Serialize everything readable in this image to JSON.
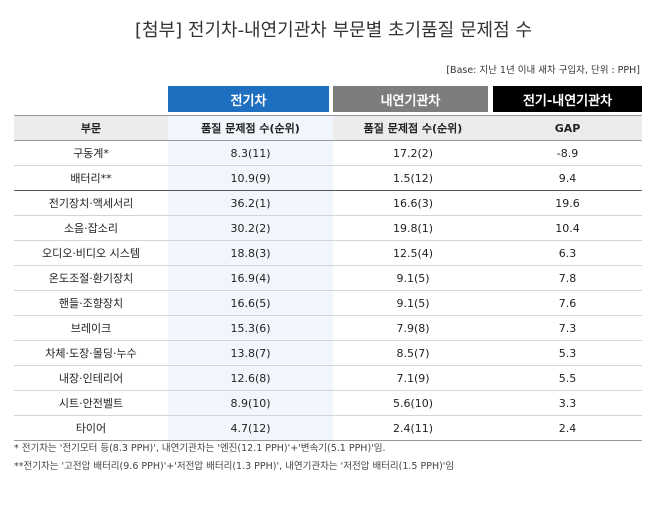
{
  "title": "[첨부] 전기차-내연기관차 부문별 초기품질 문제점 수",
  "basis": "[Base: 지난 1년 이내 새차 구입자, 단위 : PPH]",
  "group_headers": {
    "ev": "전기차",
    "ice": "내연기관차",
    "gap": "전기-내연기관차"
  },
  "columns": {
    "category": "부문",
    "ev": "품질 문제점 수(순위)",
    "ice": "품질 문제점 수(순위)",
    "gap": "GAP"
  },
  "rows": [
    {
      "category": "구동계*",
      "ev": "8.3(11)",
      "ice": "17.2(2)",
      "gap": "-8.9"
    },
    {
      "category": "배터리**",
      "ev": "10.9(9)",
      "ice": "1.5(12)",
      "gap": "9.4"
    },
    {
      "category": "전기장치·액세서리",
      "ev": "36.2(1)",
      "ice": "16.6(3)",
      "gap": "19.6"
    },
    {
      "category": "소음·잡소리",
      "ev": "30.2(2)",
      "ice": "19.8(1)",
      "gap": "10.4"
    },
    {
      "category": "오디오·비디오 시스템",
      "ev": "18.8(3)",
      "ice": "12.5(4)",
      "gap": "6.3"
    },
    {
      "category": "온도조절·환기장치",
      "ev": "16.9(4)",
      "ice": "9.1(5)",
      "gap": "7.8"
    },
    {
      "category": "핸들·조향장치",
      "ev": "16.6(5)",
      "ice": "9.1(5)",
      "gap": "7.6"
    },
    {
      "category": "브레이크",
      "ev": "15.3(6)",
      "ice": "7.9(8)",
      "gap": "7.3"
    },
    {
      "category": "차체·도장·몰딩·누수",
      "ev": "13.8(7)",
      "ice": "8.5(7)",
      "gap": "5.3"
    },
    {
      "category": "내장·인테리어",
      "ev": "12.6(8)",
      "ice": "7.1(9)",
      "gap": "5.5"
    },
    {
      "category": "시트·안전벨트",
      "ev": "8.9(10)",
      "ice": "5.6(10)",
      "gap": "3.3"
    },
    {
      "category": "타이어",
      "ev": "4.7(12)",
      "ice": "2.4(11)",
      "gap": "2.4"
    }
  ],
  "notes": [
    "* 전기차는 '전기모터 등(8.3 PPH)', 내연기관차는 '엔진(12.1 PPH)'+'변속기(5.1 PPH)'임.",
    "**전기차는 '고전압 배터리(9.6 PPH)'+'저전압 배터리(1.3 PPH)', 내연기관차는 '저전압 배터리(1.5 PPH)'임"
  ]
}
